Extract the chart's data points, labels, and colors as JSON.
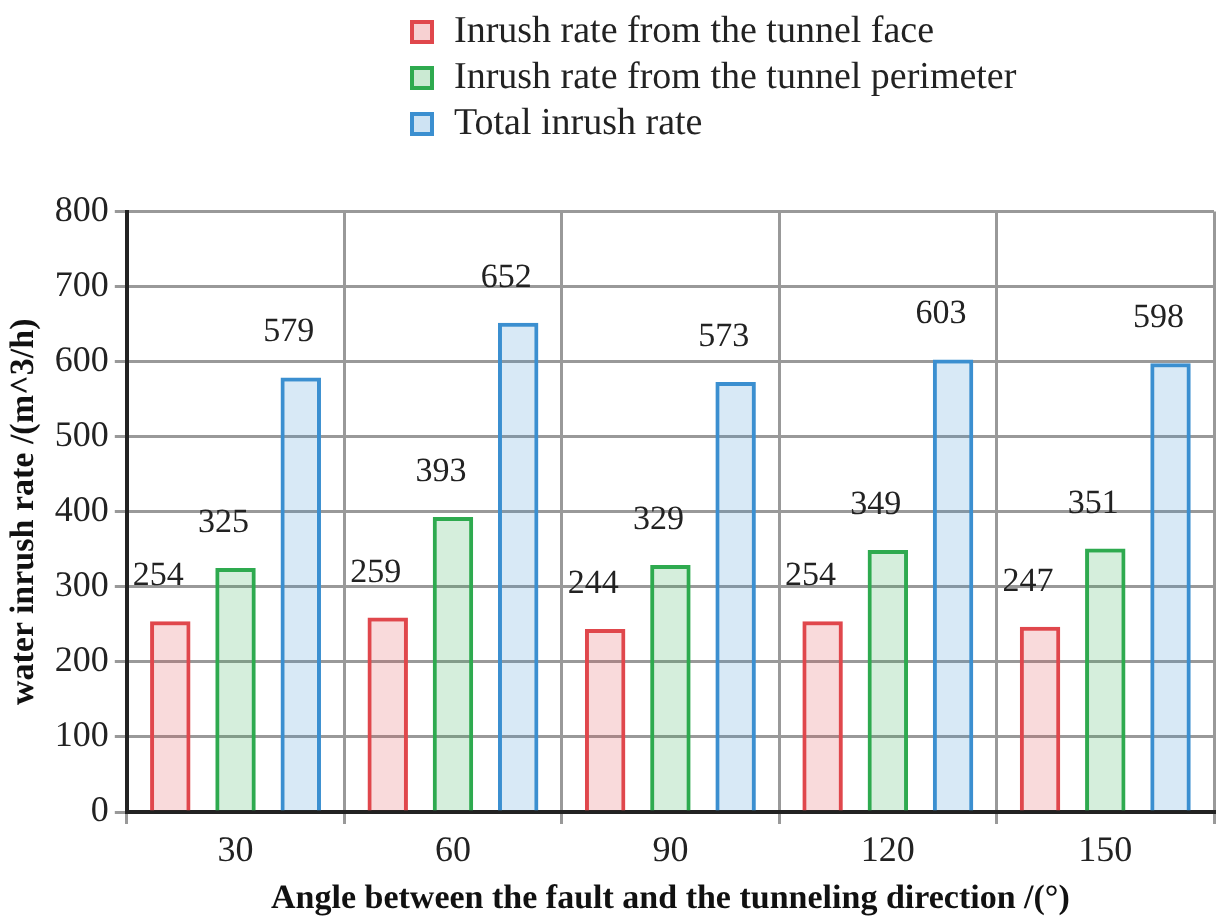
{
  "chart_data": {
    "type": "bar",
    "xlabel": "Angle between the fault and the tunneling direction /(°)",
    "ylabel": "water inrush rate /(m^3/h)",
    "categories": [
      "30",
      "60",
      "90",
      "120",
      "150"
    ],
    "series": [
      {
        "name": "Inrush rate from the tunnel face",
        "color": "#e0474c",
        "values": [
          254,
          259,
          244,
          254,
          247
        ]
      },
      {
        "name": "Inrush rate from the tunnel perimeter",
        "color": "#2eaa4f",
        "values": [
          325,
          393,
          329,
          349,
          351
        ]
      },
      {
        "name": "Total inrush rate",
        "color": "#3b8fd0",
        "values": [
          579,
          652,
          573,
          603,
          598
        ]
      }
    ],
    "ylim": [
      0,
      800
    ],
    "yticks": [
      0,
      100,
      200,
      300,
      400,
      500,
      600,
      700,
      800
    ],
    "grid": true,
    "legend": "top",
    "data_labels": true
  }
}
